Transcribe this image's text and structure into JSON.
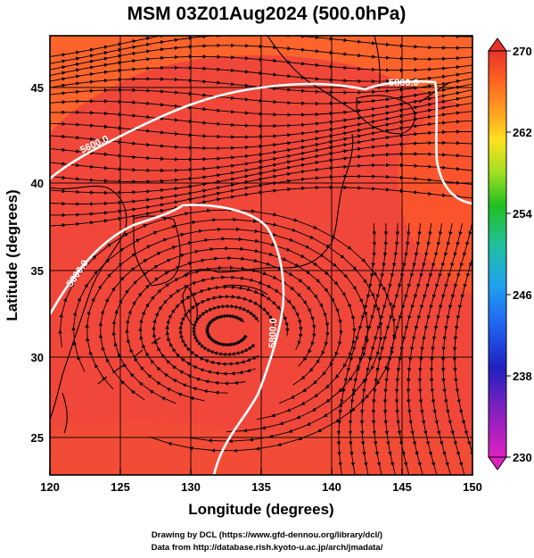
{
  "title": "MSM 03Z01Aug2024 (500.0hPa)",
  "xlabel": "Longitude (degrees)",
  "ylabel": "Latitude  (degrees)",
  "x_ticks": [
    "120",
    "125",
    "130",
    "135",
    "140",
    "145",
    "150"
  ],
  "y_ticks": [
    "25",
    "30",
    "35",
    "40",
    "45"
  ],
  "colorbar_ticks": [
    "270",
    "262",
    "254",
    "246",
    "238",
    "230"
  ],
  "contour_labels": [
    "5600.0",
    "5800.0",
    "5800.0",
    "5800.0",
    "5600.0"
  ],
  "credit_line1": "Drawing by DCL (https://www.gfd-dennou.org/library/dcl/)",
  "credit_line2": "Data from http://database.rish.kyoto-u.ac.jp/arch/jmadata/",
  "chart_data": {
    "type": "heatmap",
    "title": "MSM 03Z01Aug2024 (500.0hPa)",
    "xlabel": "Longitude (degrees)",
    "ylabel": "Latitude  (degrees)",
    "xlim": [
      120,
      150
    ],
    "ylim": [
      22.4,
      47.6
    ],
    "x_ticks": [
      120,
      125,
      130,
      135,
      140,
      145,
      150
    ],
    "y_ticks": [
      25,
      30,
      35,
      40,
      45
    ],
    "colorbar": {
      "min": 230,
      "max": 270,
      "ticks": [
        270,
        262,
        254,
        246,
        238,
        230
      ]
    },
    "shaded_field_range": [
      266,
      270
    ],
    "overlays": [
      "streamlines",
      "geopotential height contours",
      "coastlines",
      "grid"
    ],
    "contours": [
      {
        "level": 5600.0,
        "label": "5600.0"
      },
      {
        "level": 5800.0,
        "label": "5800.0"
      }
    ],
    "grid": true
  }
}
